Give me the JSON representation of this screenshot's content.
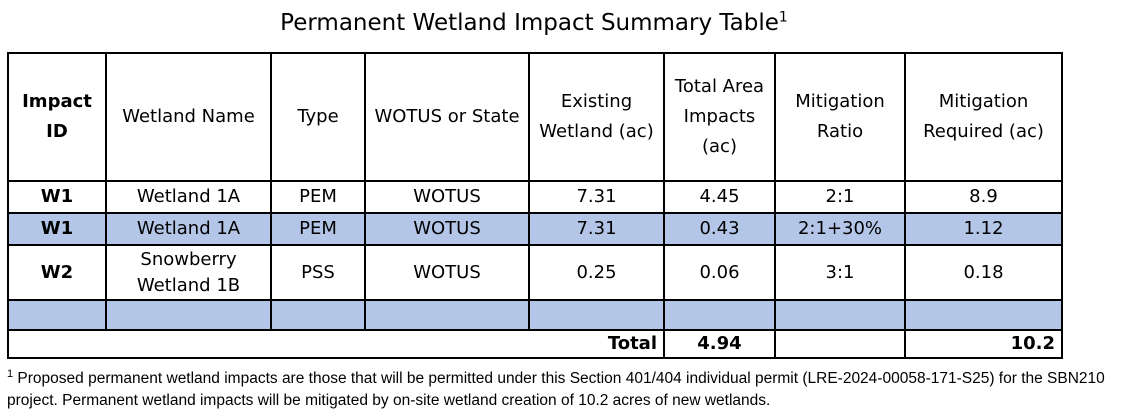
{
  "title": "Permanent Wetland Impact Summary Table",
  "title_note_mark": "1",
  "table": {
    "headers": [
      "Impact ID",
      "Wetland Name",
      "Type",
      "WOTUS or State",
      "Existing Wetland (ac)",
      "Total Area Impacts (ac)",
      "Mitigation Ratio",
      "Mitigation Required (ac)"
    ],
    "rows": [
      [
        "W1",
        "Wetland 1A",
        "PEM",
        "WOTUS",
        "7.31",
        "4.45",
        "2:1",
        "8.9"
      ],
      [
        "W1",
        "Wetland 1A",
        "PEM",
        "WOTUS",
        "7.31",
        "0.43",
        "2:1+30%",
        "1.12"
      ],
      [
        "W2",
        "Snowberry Wetland 1B",
        "PSS",
        "WOTUS",
        "0.25",
        "0.06",
        "3:1",
        "0.18"
      ],
      [
        "",
        "",
        "",
        "",
        "",
        "",
        "",
        ""
      ]
    ],
    "total_label": "Total",
    "total_impacts": "4.94",
    "total_mitigation": "10.2",
    "highlight_color": "#b4c6e7"
  },
  "footnote": {
    "mark": "1",
    "text": " Proposed permanent wetland impacts are those that will be permitted under this Section 401/404 individual permit (LRE-2024-00058-171-S25) for the SBN210 project. Permanent wetland impacts will be mitigated by on-site wetland creation of 10.2 acres of new wetlands."
  }
}
